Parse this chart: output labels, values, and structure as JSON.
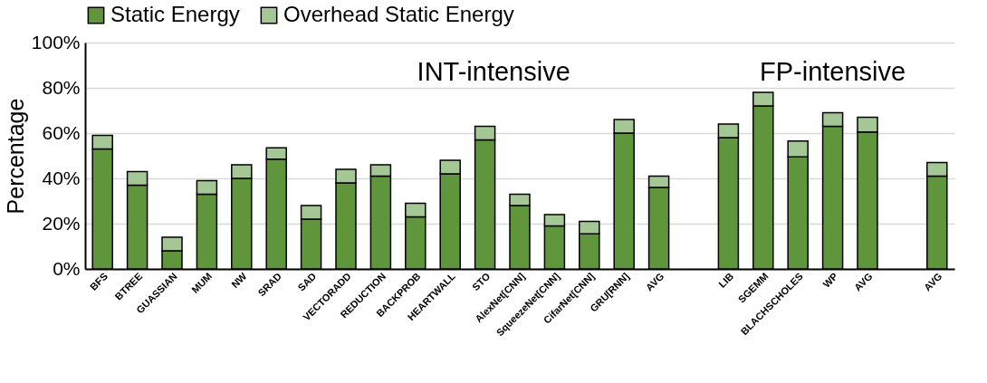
{
  "chart_data": {
    "type": "bar",
    "stacked": true,
    "ylabel": "Percentage",
    "categories": [
      "BFS",
      "BTREE",
      "GUASSIAN",
      "MUM",
      "NW",
      "SRAD",
      "SAD",
      "VECTORADD",
      "REDUCTION",
      "BACKPROB",
      "HEARTWALL",
      "STO",
      "AlexNet[CNN]",
      "SqueezeNet[CNN]",
      "CifarNet[CNN]",
      "GRU[RNN]",
      "AVG",
      null,
      "LIB",
      "SGEMM",
      "BLACHSCHOLES",
      "WP",
      "AVG",
      null,
      "AVG"
    ],
    "series": [
      {
        "name": "Static Energy",
        "color": "#5f963c",
        "values": [
          53,
          37,
          8,
          33,
          40,
          48.5,
          22,
          38,
          41,
          23,
          42,
          57,
          28,
          19,
          15.5,
          60,
          36,
          null,
          58,
          72,
          49.5,
          63,
          60.5,
          null,
          41
        ]
      },
      {
        "name": "Overhead Static Energy",
        "color": "#a5c796",
        "values": [
          6,
          6,
          6,
          6,
          6,
          5,
          6,
          6,
          5,
          6,
          6,
          6,
          5,
          5,
          5.5,
          6,
          5,
          null,
          6,
          6,
          7,
          6,
          6.5,
          null,
          6
        ]
      }
    ],
    "ylim": [
      0,
      100
    ],
    "yticks": [
      {
        "value": 0,
        "label": "0%"
      },
      {
        "value": 20,
        "label": "20%"
      },
      {
        "value": 40,
        "label": "40%"
      },
      {
        "value": 60,
        "label": "60%"
      },
      {
        "value": 80,
        "label": "80%"
      },
      {
        "value": 100,
        "label": "100%"
      }
    ],
    "annotations": [
      "INT-intensive",
      "FP-intensive"
    ],
    "grid": "y",
    "legend": "top"
  }
}
